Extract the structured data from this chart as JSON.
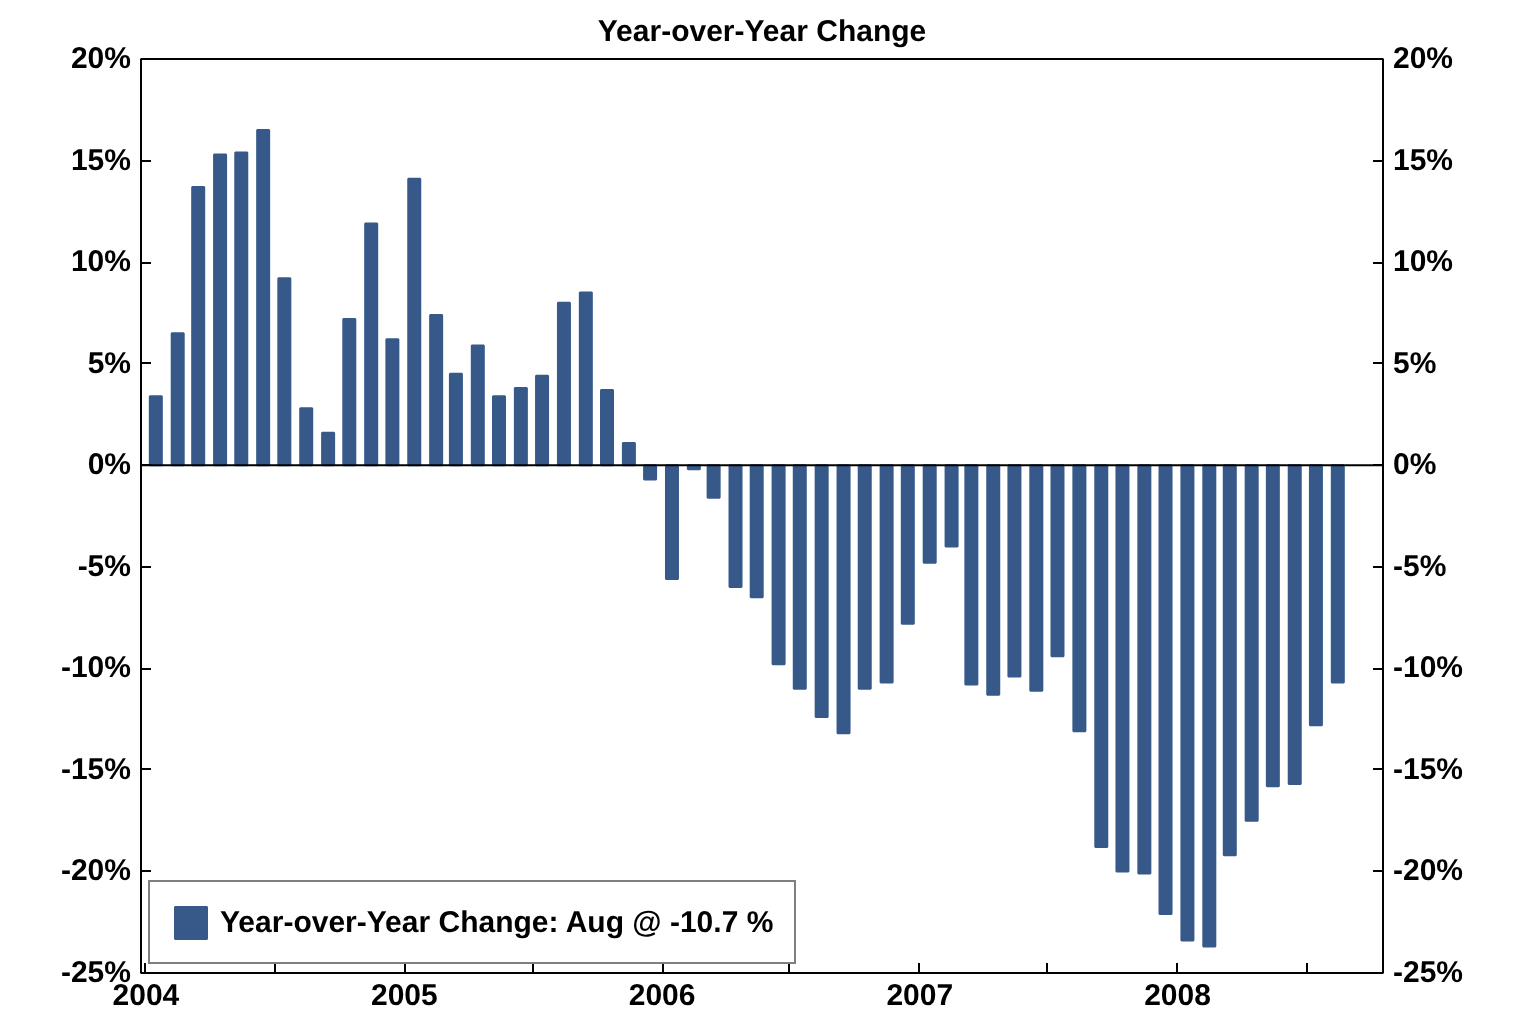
{
  "chart_data": {
    "type": "bar",
    "title": "Year-over-Year Change",
    "x": [
      "2004-01-15",
      "2004-02-15",
      "2004-03-15",
      "2004-04-15",
      "2004-05-15",
      "2004-06-15",
      "2004-07-15",
      "2004-08-15",
      "2004-09-15",
      "2004-10-15",
      "2004-11-15",
      "2004-12-15",
      "2005-01-15",
      "2005-02-15",
      "2005-03-15",
      "2005-04-15",
      "2005-05-15",
      "2005-06-15",
      "2005-07-15",
      "2005-08-15",
      "2005-09-15",
      "2005-10-15",
      "2005-11-15",
      "2005-12-15",
      "2006-01-15",
      "2006-02-15",
      "2006-03-15",
      "2006-04-15",
      "2006-05-15",
      "2006-06-15",
      "2006-07-15",
      "2006-08-15",
      "2006-09-15",
      "2006-10-15",
      "2006-11-15",
      "2006-12-15",
      "2007-01-15",
      "2007-02-15",
      "2007-03-15",
      "2007-04-15",
      "2007-05-15",
      "2007-06-15",
      "2007-07-15",
      "2007-08-15",
      "2007-09-15",
      "2007-10-15",
      "2007-11-15",
      "2007-12-15",
      "2008-01-15",
      "2008-02-15",
      "2008-03-15",
      "2008-04-15",
      "2008-05-15",
      "2008-06-15",
      "2008-07-15",
      "2008-08-15"
    ],
    "series": [
      {
        "name": "Year-over-Year Change: Aug @ -10.7 %",
        "color": "#36598a",
        "values": [
          3.4,
          6.5,
          13.7,
          15.3,
          15.4,
          16.5,
          9.2,
          2.8,
          1.6,
          7.2,
          11.9,
          6.2,
          14.1,
          7.4,
          4.5,
          5.9,
          3.4,
          3.8,
          4.4,
          8.0,
          8.5,
          3.7,
          1.1,
          -0.7,
          -5.6,
          -0.2,
          -1.6,
          -6.0,
          -6.5,
          -9.8,
          -11.0,
          -12.4,
          -13.2,
          -11.0,
          -10.7,
          -7.8,
          -4.8,
          -4.0,
          -10.8,
          -11.3,
          -10.4,
          -11.1,
          -9.4,
          -13.1,
          -18.8,
          -20.0,
          -20.1,
          -22.1,
          -23.4,
          -23.7,
          -19.2,
          -17.5,
          -15.8,
          -15.7,
          -12.8,
          -10.7
        ]
      }
    ],
    "xlim": [
      "2003-12-25",
      "2008-10-18"
    ],
    "xticks": [
      {
        "value": "2004-01-01",
        "label": "2004"
      },
      {
        "value": "2004-07-01",
        "label": null
      },
      {
        "value": "2005-01-01",
        "label": "2005"
      },
      {
        "value": "2005-07-01",
        "label": null
      },
      {
        "value": "2006-01-01",
        "label": "2006"
      },
      {
        "value": "2006-07-01",
        "label": null
      },
      {
        "value": "2007-01-01",
        "label": "2007"
      },
      {
        "value": "2007-07-01",
        "label": null
      },
      {
        "value": "2008-01-01",
        "label": "2008"
      },
      {
        "value": "2008-07-01",
        "label": null
      }
    ],
    "ylim": [
      -25,
      20
    ],
    "yticks": [
      {
        "value": 20,
        "label": "20%"
      },
      {
        "value": 15,
        "label": "15%"
      },
      {
        "value": 10,
        "label": "10%"
      },
      {
        "value": 5,
        "label": "5%"
      },
      {
        "value": 0,
        "label": "0%"
      },
      {
        "value": -5,
        "label": "-5%"
      },
      {
        "value": -10,
        "label": "-10%"
      },
      {
        "value": -15,
        "label": "-15%"
      },
      {
        "value": -20,
        "label": "-20%"
      },
      {
        "value": -25,
        "label": "-25%"
      }
    ],
    "y2lim": [
      -25,
      20
    ],
    "y2ticks": [
      {
        "value": 20,
        "label": "20%"
      },
      {
        "value": 15,
        "label": "15%"
      },
      {
        "value": 10,
        "label": "10%"
      },
      {
        "value": 5,
        "label": "5%"
      },
      {
        "value": 0,
        "label": "0%"
      },
      {
        "value": -5,
        "label": "-5%"
      },
      {
        "value": -10,
        "label": "-10%"
      },
      {
        "value": -15,
        "label": "-15%"
      },
      {
        "value": -20,
        "label": "-20%"
      },
      {
        "value": -25,
        "label": "-25%"
      }
    ],
    "grid": false,
    "ref_lines": [
      {
        "axis": "y",
        "value": 0,
        "color": "#000000"
      }
    ],
    "legend": "bottom left"
  }
}
